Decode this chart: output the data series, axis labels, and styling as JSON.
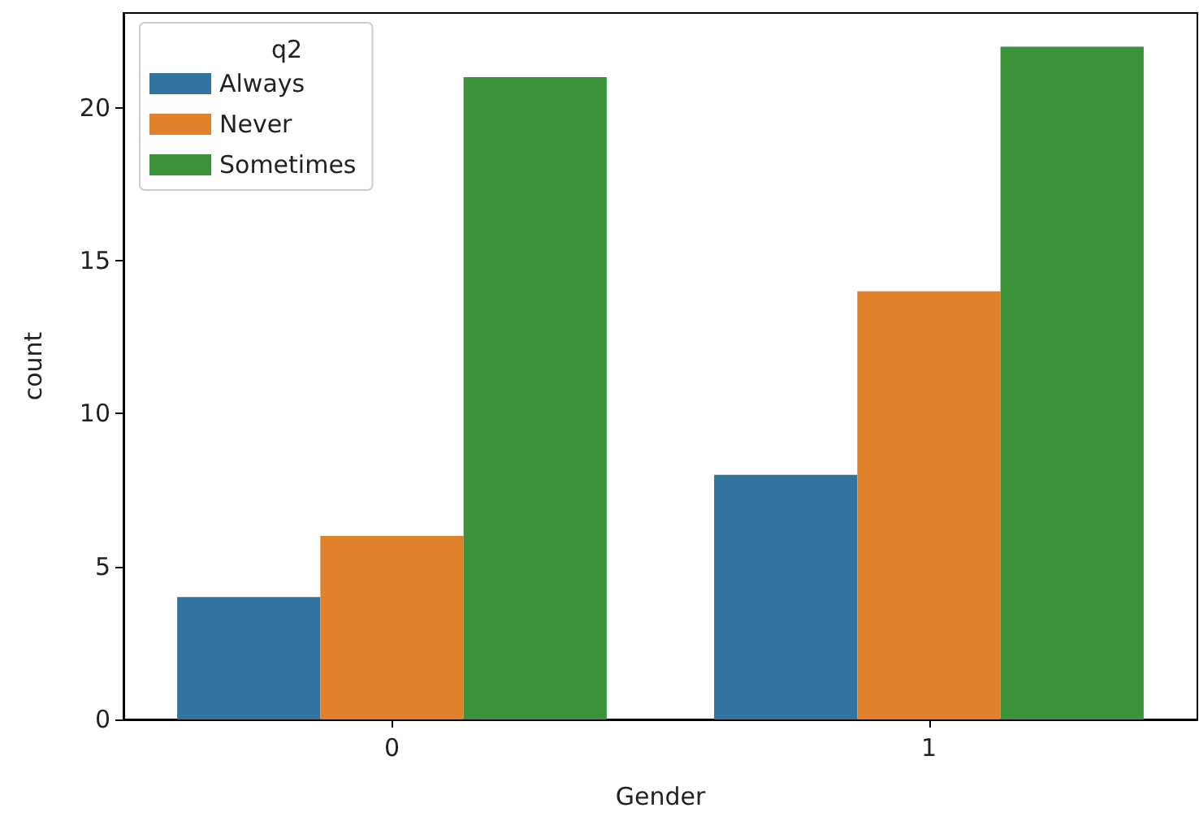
{
  "chart_data": {
    "type": "bar",
    "xlabel": "Gender",
    "ylabel": "count",
    "legend_title": "q2",
    "categories": [
      "0",
      "1"
    ],
    "series": [
      {
        "name": "Always",
        "color": "#3274a1",
        "values": [
          4,
          8
        ]
      },
      {
        "name": "Never",
        "color": "#e1812c",
        "values": [
          6,
          14
        ]
      },
      {
        "name": "Sometimes",
        "color": "#3a923a",
        "values": [
          21,
          22
        ]
      }
    ],
    "ylim": [
      0,
      23.1
    ],
    "yticks": [
      0,
      5,
      10,
      15,
      20
    ],
    "grid": false,
    "legend": "top left"
  }
}
